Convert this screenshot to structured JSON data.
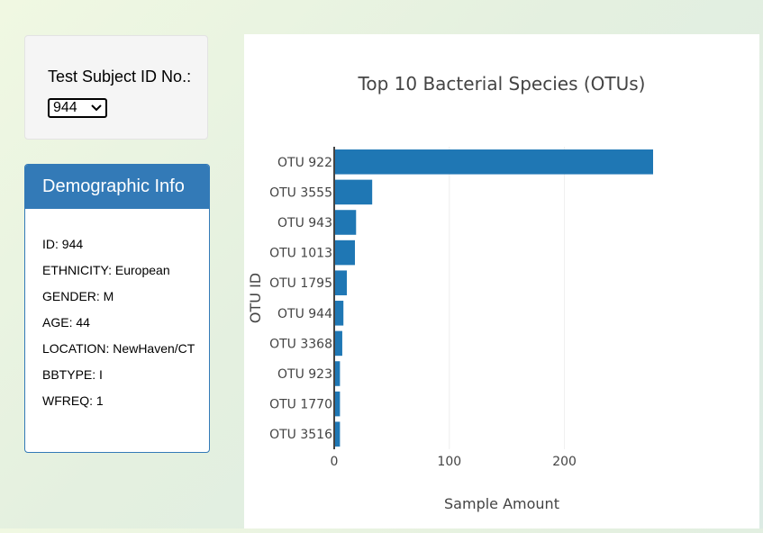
{
  "selector": {
    "label": "Test Subject ID No.:",
    "selected": "944"
  },
  "demographics": {
    "title": "Demographic Info",
    "lines": [
      "ID: 944",
      "ETHNICITY: European",
      "GENDER: M",
      "AGE: 44",
      "LOCATION: NewHaven/CT",
      "BBTYPE: I",
      "WFREQ: 1"
    ]
  },
  "colors": {
    "bar": "#1f77b4",
    "panel_accent": "#337ab7"
  },
  "chart_data": {
    "type": "bar",
    "orientation": "horizontal",
    "title": "Top 10 Bacterial Species (OTUs)",
    "xlabel": "Sample Amount",
    "ylabel": "OTU ID",
    "categories": [
      "OTU 922",
      "OTU 3555",
      "OTU 943",
      "OTU 1013",
      "OTU 1795",
      "OTU 944",
      "OTU 3368",
      "OTU 923",
      "OTU 1770",
      "OTU 3516"
    ],
    "values": [
      277,
      33,
      19,
      18,
      11,
      8,
      7,
      5,
      5,
      5
    ],
    "xlim": [
      0,
      277
    ],
    "xticks": [
      0,
      100,
      200
    ],
    "grid": true
  }
}
